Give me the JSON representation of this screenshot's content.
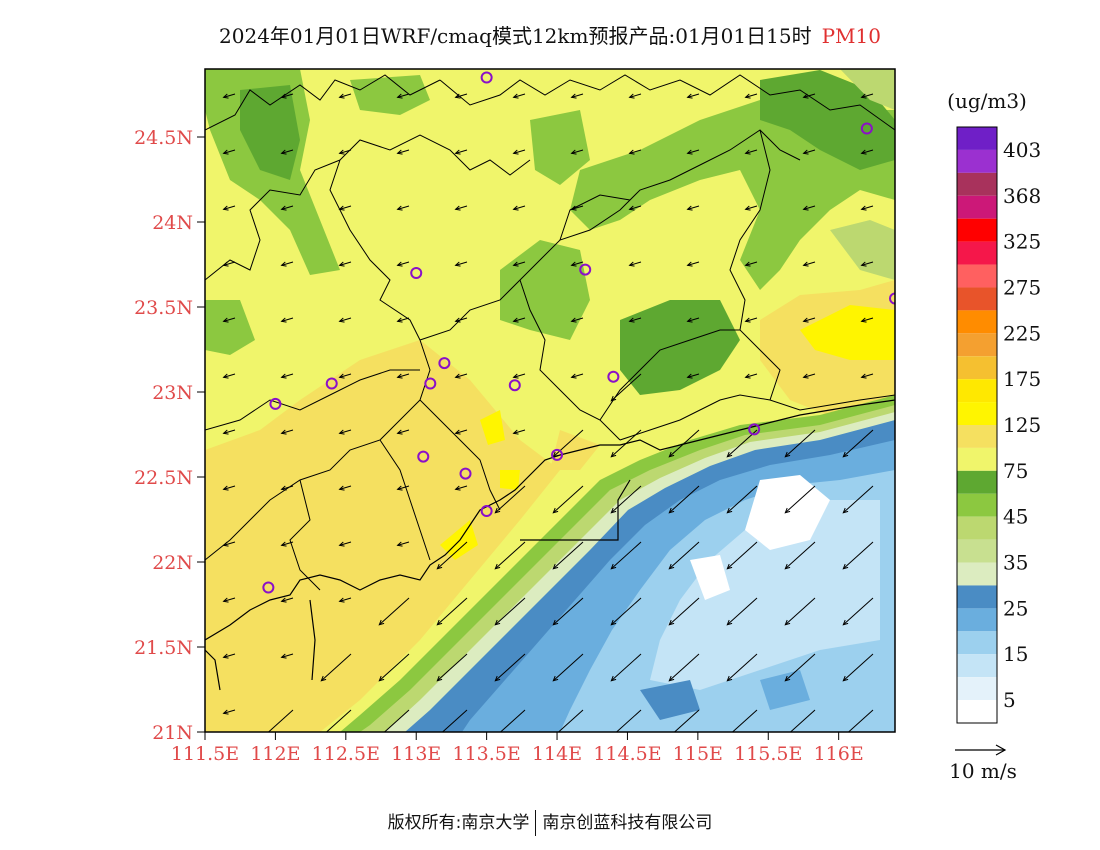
{
  "title": {
    "main": "2024年01月01日WRF/cmaq模式12km预报产品:01月01日15时",
    "pollutant": "PM10"
  },
  "unit_label": "(ug/m3)",
  "wind_scale_label": "10 m/s",
  "footer": {
    "left": "版权所有:南京大学",
    "right": "南京创蓝科技有限公司"
  },
  "legend": {
    "labels": [
      "403",
      "368",
      "325",
      "275",
      "225",
      "175",
      "125",
      "75",
      "45",
      "35",
      "25",
      "15",
      "5"
    ],
    "colors": [
      "#6f1fc7",
      "#9b30d0",
      "#a8325c",
      "#cc1878",
      "#ff0000",
      "#f5174a",
      "#ff6060",
      "#e8542a",
      "#ff8c00",
      "#f4a030",
      "#f5c030",
      "#ffe800",
      "#fff500",
      "#f5e060",
      "#f0f56b",
      "#5ea831",
      "#8cc840",
      "#bcd870",
      "#c8e090",
      "#dcecc0",
      "#4a8cc4",
      "#6aaede",
      "#9cd0ee",
      "#c4e4f6",
      "#e4f2fa",
      "#ffffff"
    ]
  },
  "axes": {
    "x_ticks": [
      "111.5E",
      "112E",
      "112.5E",
      "113E",
      "113.5E",
      "114E",
      "114.5E",
      "115E",
      "115.5E",
      "116E"
    ],
    "y_ticks": [
      "24.5N",
      "24N",
      "23.5N",
      "23N",
      "22.5N",
      "22N",
      "21.5N",
      "21N"
    ],
    "lon_range": [
      111.5,
      116.4
    ],
    "lat_range": [
      21.0,
      24.9
    ]
  },
  "stations": [
    [
      113.5,
      24.85
    ],
    [
      113.0,
      23.7
    ],
    [
      114.2,
      23.72
    ],
    [
      116.2,
      24.55
    ],
    [
      116.4,
      23.55
    ],
    [
      112.0,
      22.93
    ],
    [
      112.4,
      23.05
    ],
    [
      113.1,
      23.05
    ],
    [
      113.2,
      23.17
    ],
    [
      113.7,
      23.04
    ],
    [
      114.4,
      23.09
    ],
    [
      113.05,
      22.62
    ],
    [
      113.35,
      22.52
    ],
    [
      114.0,
      22.63
    ],
    [
      113.5,
      22.3
    ],
    [
      115.4,
      22.78
    ],
    [
      111.95,
      21.85
    ]
  ],
  "colors": {
    "coast_border": "#000000",
    "station_marker": "#8a10c8",
    "axis_label": "#e04a4a"
  }
}
